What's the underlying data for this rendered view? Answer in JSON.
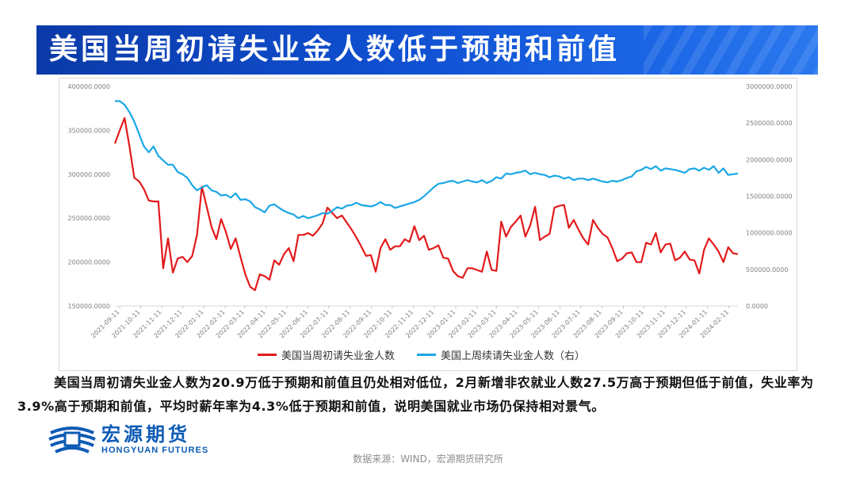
{
  "title": "美国当周初请失业金人数低于预期和前值",
  "chart_data": {
    "type": "line",
    "title": "",
    "x_categories": [
      "2021-09-11",
      "2021-10-11",
      "2021-11-11",
      "2021-12-11",
      "2022-01-11",
      "2022-02-11",
      "2022-03-11",
      "2022-04-11",
      "2022-05-11",
      "2022-06-11",
      "2022-07-11",
      "2022-08-11",
      "2022-09-11",
      "2022-10-11",
      "2022-11-11",
      "2022-12-11",
      "2023-01-11",
      "2023-02-11",
      "2023-03-11",
      "2023-04-11",
      "2023-05-11",
      "2023-06-11",
      "2023-07-11",
      "2023-08-11",
      "2023-09-11",
      "2023-10-11",
      "2023-11-11",
      "2023-12-11",
      "2024-01-11",
      "2024-02-11"
    ],
    "y_left": {
      "min": 150000,
      "max": 400000,
      "ticks": [
        "400000.0000",
        "350000.0000",
        "300000.0000",
        "250000.0000",
        "200000.0000",
        "150000.0000"
      ]
    },
    "y_right": {
      "min": 0,
      "max": 3000000,
      "ticks": [
        "3000000.0000",
        "2500000.0000",
        "2000000.0000",
        "1500000.0000",
        "1000000.0000",
        "500000.0000",
        "0.0000"
      ]
    },
    "series": [
      {
        "name": "美国当周初请失业金人数",
        "axis": "left",
        "color": "#e31a1c",
        "start": "2021-09-04",
        "values": [
          335000,
          350000,
          364000,
          332000,
          296000,
          292000,
          283000,
          270000,
          269000,
          269000,
          193000,
          227000,
          188000,
          204000,
          206000,
          200000,
          207000,
          231000,
          286000,
          263000,
          240000,
          226000,
          249000,
          234000,
          215000,
          227000,
          206000,
          186000,
          172000,
          168000,
          186000,
          184000,
          180000,
          202000,
          197000,
          209000,
          216000,
          201000,
          231000,
          231000,
          233000,
          230000,
          236000,
          244000,
          262000,
          256000,
          250000,
          253000,
          245000,
          237000,
          228000,
          218000,
          207000,
          208000,
          189000,
          216000,
          226000,
          214000,
          218000,
          218000,
          226000,
          223000,
          241000,
          225000,
          230000,
          214000,
          216000,
          219000,
          205000,
          204000,
          190000,
          184000,
          182000,
          193000,
          193000,
          191000,
          189000,
          212000,
          191000,
          190000,
          246000,
          229000,
          240000,
          246000,
          253000,
          229000,
          242000,
          263000,
          225000,
          229000,
          232000,
          262000,
          264000,
          265000,
          239000,
          248000,
          237000,
          227000,
          220000,
          248000,
          239000,
          232000,
          228000,
          216000,
          201000,
          204000,
          210000,
          211000,
          200000,
          200000,
          222000,
          220000,
          233000,
          211000,
          220000,
          221000,
          202000,
          205000,
          212000,
          203000,
          202000,
          187000,
          214000,
          227000,
          220000,
          212000,
          200000,
          217000,
          210000,
          209000
        ]
      },
      {
        "name": "美国上周续请失业金人数（右）",
        "axis": "right",
        "color": "#1aa7e6",
        "start": "2021-09-04",
        "values": [
          2800000,
          2800000,
          2750000,
          2650000,
          2520000,
          2350000,
          2180000,
          2100000,
          2180000,
          2050000,
          1990000,
          1930000,
          1930000,
          1830000,
          1800000,
          1750000,
          1650000,
          1580000,
          1620000,
          1650000,
          1580000,
          1560000,
          1510000,
          1520000,
          1480000,
          1540000,
          1450000,
          1460000,
          1430000,
          1350000,
          1320000,
          1280000,
          1370000,
          1390000,
          1340000,
          1300000,
          1270000,
          1250000,
          1200000,
          1230000,
          1200000,
          1220000,
          1240000,
          1270000,
          1260000,
          1300000,
          1350000,
          1330000,
          1370000,
          1380000,
          1410000,
          1380000,
          1370000,
          1360000,
          1380000,
          1420000,
          1380000,
          1380000,
          1340000,
          1360000,
          1380000,
          1400000,
          1420000,
          1450000,
          1500000,
          1560000,
          1620000,
          1670000,
          1680000,
          1700000,
          1710000,
          1680000,
          1700000,
          1720000,
          1700000,
          1690000,
          1720000,
          1680000,
          1710000,
          1760000,
          1740000,
          1810000,
          1800000,
          1820000,
          1830000,
          1850000,
          1800000,
          1820000,
          1800000,
          1790000,
          1760000,
          1780000,
          1770000,
          1740000,
          1760000,
          1720000,
          1740000,
          1740000,
          1720000,
          1740000,
          1720000,
          1700000,
          1690000,
          1710000,
          1700000,
          1720000,
          1750000,
          1770000,
          1840000,
          1860000,
          1900000,
          1870000,
          1910000,
          1850000,
          1880000,
          1870000,
          1860000,
          1840000,
          1820000,
          1870000,
          1880000,
          1850000,
          1890000,
          1860000,
          1910000,
          1820000,
          1880000,
          1790000,
          1800000,
          1810000
        ]
      }
    ],
    "legend_position": "bottom",
    "grid": true
  },
  "paragraph": "美国当周初请失业金人数为20.9万低于预期和前值且仍处相对低位，2月新增非农就业人数27.5万高于预期但低于前值，失业率为3.9%高于预期和前值，平均时薪年率为4.3%低于预期和前值，说明美国就业市场仍保持相对景气。",
  "logo": {
    "name_cn": "宏源期货",
    "name_en": "HONGYUAN FUTURES",
    "color": "#0d5bb5"
  },
  "source": "数据来源：WIND，宏源期货研究所"
}
